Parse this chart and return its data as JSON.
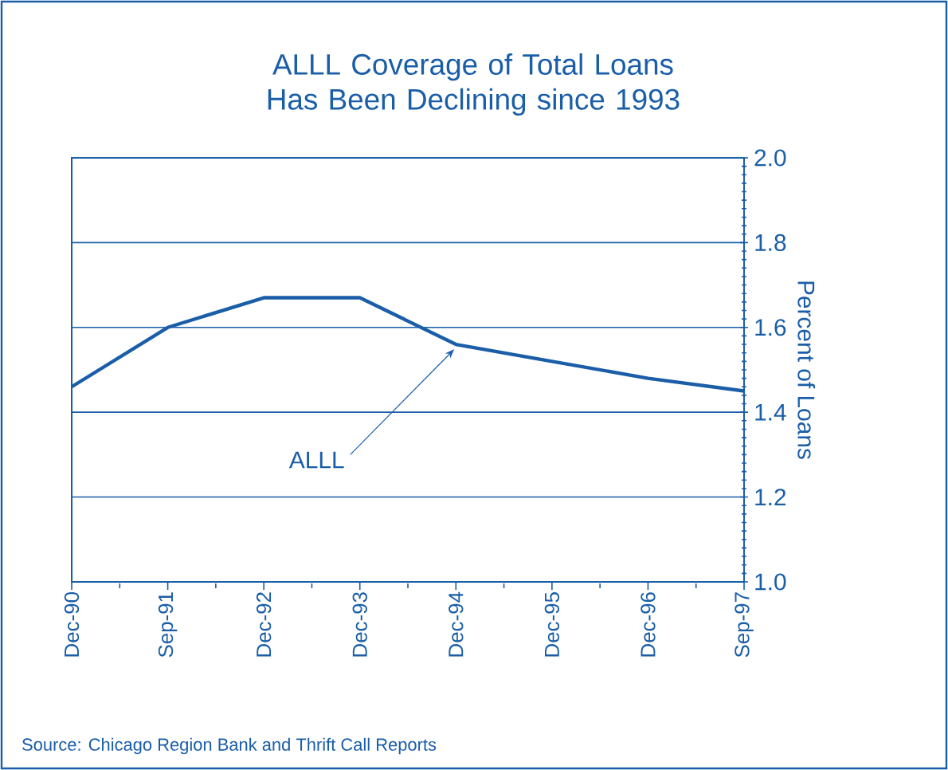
{
  "chart_data": {
    "type": "line",
    "title": "ALLL Coverage of Total Loans Has Been Declining since 1993",
    "ylabel": "Percent of Loans",
    "categories": [
      "Dec-90",
      "Sep-91",
      "Dec-92",
      "Dec-93",
      "Dec-94",
      "Dec-95",
      "Dec-96",
      "Sep-97"
    ],
    "series": [
      {
        "color": "#1a5ea8",
        "values": [
          1.46,
          1.6,
          1.67,
          1.67,
          1.56,
          1.52,
          1.48,
          1.45
        ]
      }
    ],
    "ylim": [
      1.0,
      2.0
    ],
    "yticks": [
      {
        "value": 1.0,
        "label": "1.0"
      },
      {
        "value": 1.2,
        "label": "1.2"
      },
      {
        "value": 1.4,
        "label": "1.4"
      },
      {
        "value": 1.6,
        "label": "1.6"
      },
      {
        "value": 1.8,
        "label": "1.8"
      },
      {
        "value": 2.0,
        "label": "2.0"
      }
    ],
    "grid": "y",
    "line_style": "solid",
    "marker": "none",
    "annotations": [
      {
        "text": "ALLL",
        "x": "Dec-94",
        "y": 1.56
      },
      "Source: Chicago Region Bank and Thrift Call Reports"
    ]
  }
}
